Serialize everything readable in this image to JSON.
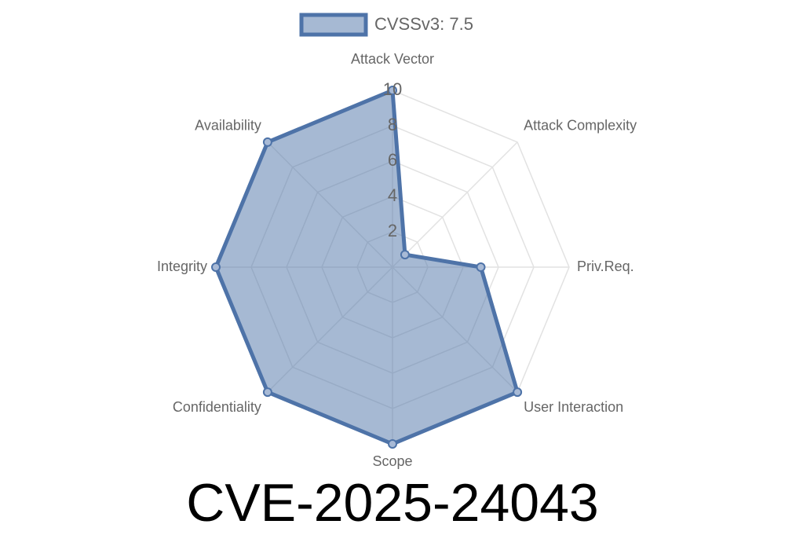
{
  "chart_data": {
    "type": "radar",
    "title": "CVE-2025-24043",
    "categories": [
      "Attack Vector",
      "Attack Complexity",
      "Priv.Req.",
      "User Interaction",
      "Scope",
      "Confidentiality",
      "Integrity",
      "Availability"
    ],
    "series": [
      {
        "name": "CVSSv3: 7.5",
        "color": "#4e73a8",
        "values": [
          10,
          1,
          5,
          10,
          10,
          10,
          10,
          10
        ]
      }
    ],
    "ylim": [
      0,
      10
    ],
    "yticks": [
      2,
      4,
      6,
      8,
      10
    ],
    "grid": true,
    "legend": "top"
  }
}
